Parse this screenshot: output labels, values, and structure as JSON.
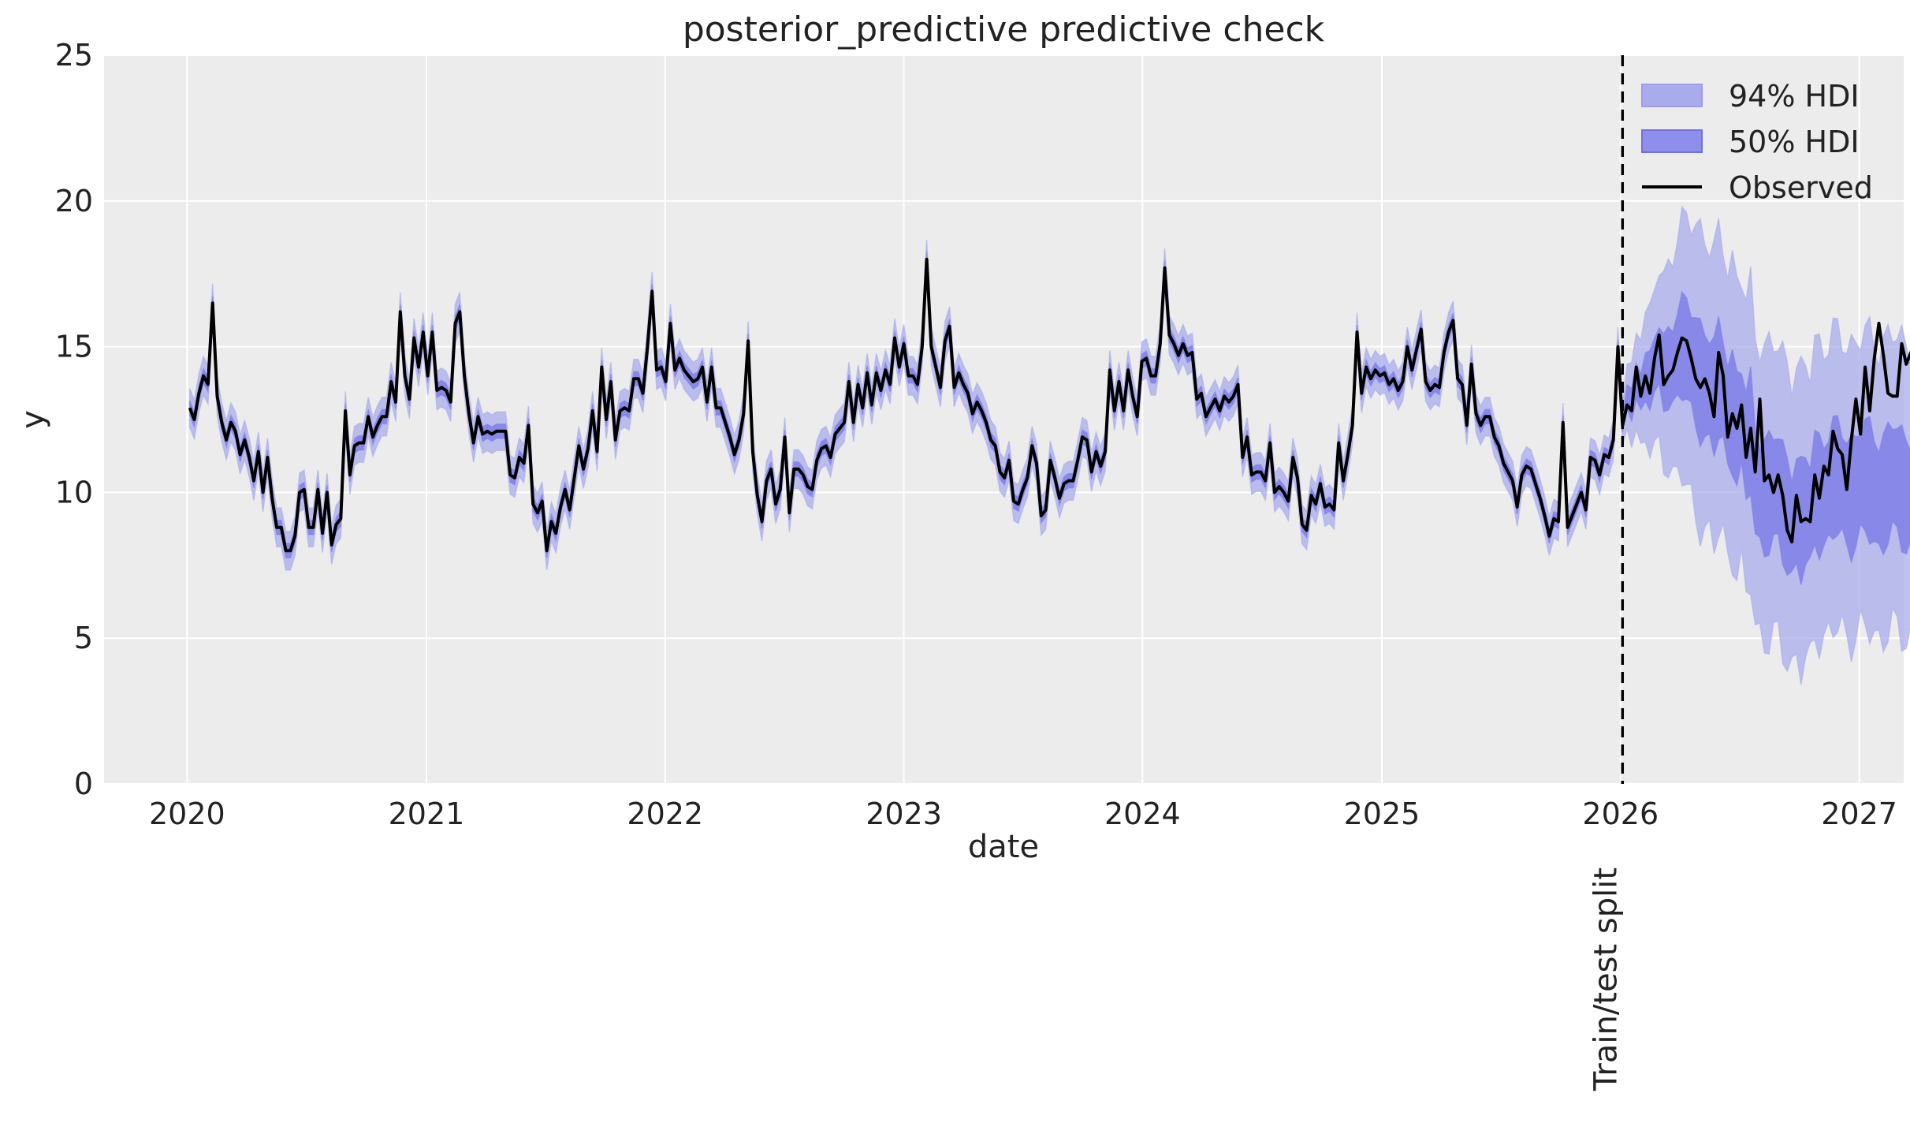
{
  "chart_data": {
    "type": "line",
    "title": "posterior_predictive predictive check",
    "xlabel": "date",
    "ylabel": "y",
    "ylim": [
      0,
      25
    ],
    "xlim": [
      "2019-08-27",
      "2027-03-10"
    ],
    "x_ticks": [
      "2020",
      "2021",
      "2022",
      "2023",
      "2024",
      "2025",
      "2026",
      "2027"
    ],
    "y_ticks": [
      "0",
      "5",
      "10",
      "15",
      "20",
      "25"
    ],
    "grid": true,
    "legend_position": "top-right",
    "split": {
      "date": "2026-01-04",
      "label": "Train/test split"
    },
    "colors": {
      "hdi_94": "#a9acec",
      "hdi_50": "#7f7fe8",
      "observed": "#000000",
      "background": "#ececec",
      "grid": "#ffffff"
    },
    "series": [
      {
        "name": "94% HDI",
        "kind": "band",
        "width": 1.9
      },
      {
        "name": "50% HDI",
        "kind": "band",
        "width": 0.7
      },
      {
        "name": "Observed",
        "kind": "line",
        "start_date": "2020-01-05",
        "freq_days": 7,
        "values": [
          12.9,
          12.5,
          13.4,
          14.0,
          13.7,
          16.5,
          13.3,
          12.4,
          11.8,
          12.4,
          12.1,
          11.3,
          11.8,
          11.2,
          10.4,
          11.4,
          10.0,
          11.2,
          9.8,
          8.8,
          8.8,
          8.0,
          8.0,
          8.5,
          10.0,
          10.1,
          8.8,
          8.8,
          10.1,
          8.6,
          10.0,
          8.2,
          8.9,
          9.1,
          12.8,
          10.6,
          11.6,
          11.7,
          11.7,
          12.6,
          11.9,
          12.3,
          12.6,
          12.6,
          13.8,
          13.1,
          16.2,
          14.0,
          13.2,
          15.3,
          14.3,
          15.5,
          14.0,
          15.5,
          13.5,
          13.6,
          13.5,
          13.1,
          15.8,
          16.2,
          14.0,
          12.7,
          11.7,
          12.6,
          12.0,
          12.1,
          12.0,
          12.1,
          12.1,
          12.1,
          10.6,
          10.5,
          11.2,
          11.0,
          12.3,
          9.6,
          9.3,
          9.7,
          8.0,
          9.0,
          8.6,
          9.5,
          10.1,
          9.4,
          10.5,
          11.6,
          10.8,
          11.5,
          12.8,
          11.4,
          14.3,
          12.5,
          13.8,
          11.8,
          12.8,
          12.9,
          12.8,
          13.9,
          13.9,
          13.4,
          15.0,
          16.9,
          14.2,
          14.3,
          13.8,
          15.8,
          14.2,
          14.6,
          14.2,
          14.0,
          13.8,
          13.9,
          14.3,
          13.1,
          14.3,
          12.9,
          12.9,
          12.4,
          11.9,
          11.3,
          11.8,
          12.7,
          15.2,
          11.4,
          9.9,
          9.0,
          10.4,
          10.8,
          9.6,
          10.1,
          11.9,
          9.3,
          10.8,
          10.8,
          10.6,
          10.2,
          10.1,
          11.1,
          11.5,
          11.6,
          11.2,
          12.0,
          12.2,
          12.4,
          13.8,
          12.4,
          13.7,
          12.9,
          14.1,
          13.0,
          14.1,
          13.5,
          14.2,
          13.7,
          15.3,
          14.3,
          15.1,
          14.0,
          14.0,
          13.7,
          15.0,
          18.0,
          15.0,
          14.3,
          13.6,
          15.2,
          15.7,
          13.6,
          14.1,
          13.7,
          13.4,
          12.7,
          13.1,
          12.8,
          12.4,
          11.8,
          11.6,
          10.7,
          10.5,
          11.1,
          9.7,
          9.6,
          10.1,
          10.5,
          11.6,
          11.0,
          9.2,
          9.4,
          11.1,
          10.5,
          9.8,
          10.3,
          10.4,
          10.4,
          11.1,
          11.9,
          11.8,
          10.7,
          11.4,
          10.9,
          11.4,
          14.2,
          12.8,
          13.8,
          12.8,
          14.2,
          13.3,
          12.6,
          14.5,
          14.6,
          14.0,
          14.0,
          15.1,
          17.7,
          15.4,
          15.1,
          14.7,
          15.1,
          14.7,
          14.8,
          13.2,
          13.4,
          12.6,
          12.9,
          13.2,
          12.8,
          13.3,
          13.1,
          13.3,
          13.7,
          11.2,
          11.9,
          10.6,
          10.7,
          10.7,
          10.4,
          11.7,
          10.0,
          10.2,
          10.0,
          9.7,
          11.2,
          10.5,
          8.9,
          8.7,
          9.9,
          9.6,
          10.3,
          9.5,
          9.6,
          9.4,
          11.7,
          10.4,
          11.3,
          12.3,
          15.5,
          13.4,
          14.3,
          13.9,
          14.2,
          14.0,
          14.1,
          13.7,
          13.9,
          13.5,
          13.8,
          15.0,
          14.2,
          14.9,
          15.6,
          13.8,
          13.5,
          13.7,
          13.6,
          14.8,
          15.5,
          15.9,
          13.9,
          13.7,
          12.3,
          14.4,
          12.7,
          12.3,
          12.6,
          12.6,
          11.9,
          11.6,
          11.0,
          10.7,
          10.4,
          9.5,
          10.6,
          10.9,
          10.8,
          10.3,
          9.8,
          9.2,
          8.5,
          9.1,
          9.0,
          12.4,
          8.8,
          9.2,
          9.6,
          10.0,
          9.4,
          11.2,
          11.1,
          10.6,
          11.3,
          11.2,
          11.8,
          15.0,
          12.3,
          13.0,
          12.8,
          14.3,
          13.3,
          14.0,
          13.4,
          14.6,
          15.4,
          13.7,
          14.0,
          14.2,
          14.8,
          15.3,
          15.2,
          14.6,
          13.9,
          13.6,
          13.9,
          13.4,
          12.6,
          14.8,
          14.0,
          11.9,
          12.7,
          12.2,
          13.0,
          11.2,
          12.2,
          10.7,
          13.2,
          10.4,
          10.6,
          10.0,
          10.6,
          9.9,
          8.7,
          8.3,
          9.9,
          9.0,
          9.1,
          9.0,
          10.6,
          9.8,
          10.9,
          10.6,
          12.1,
          11.5,
          11.3,
          10.1,
          11.8,
          13.2,
          12.0,
          14.3,
          12.8,
          14.6,
          15.8,
          14.7,
          13.4,
          13.3,
          13.3,
          15.1,
          14.4,
          14.8,
          15.2
        ]
      }
    ]
  }
}
